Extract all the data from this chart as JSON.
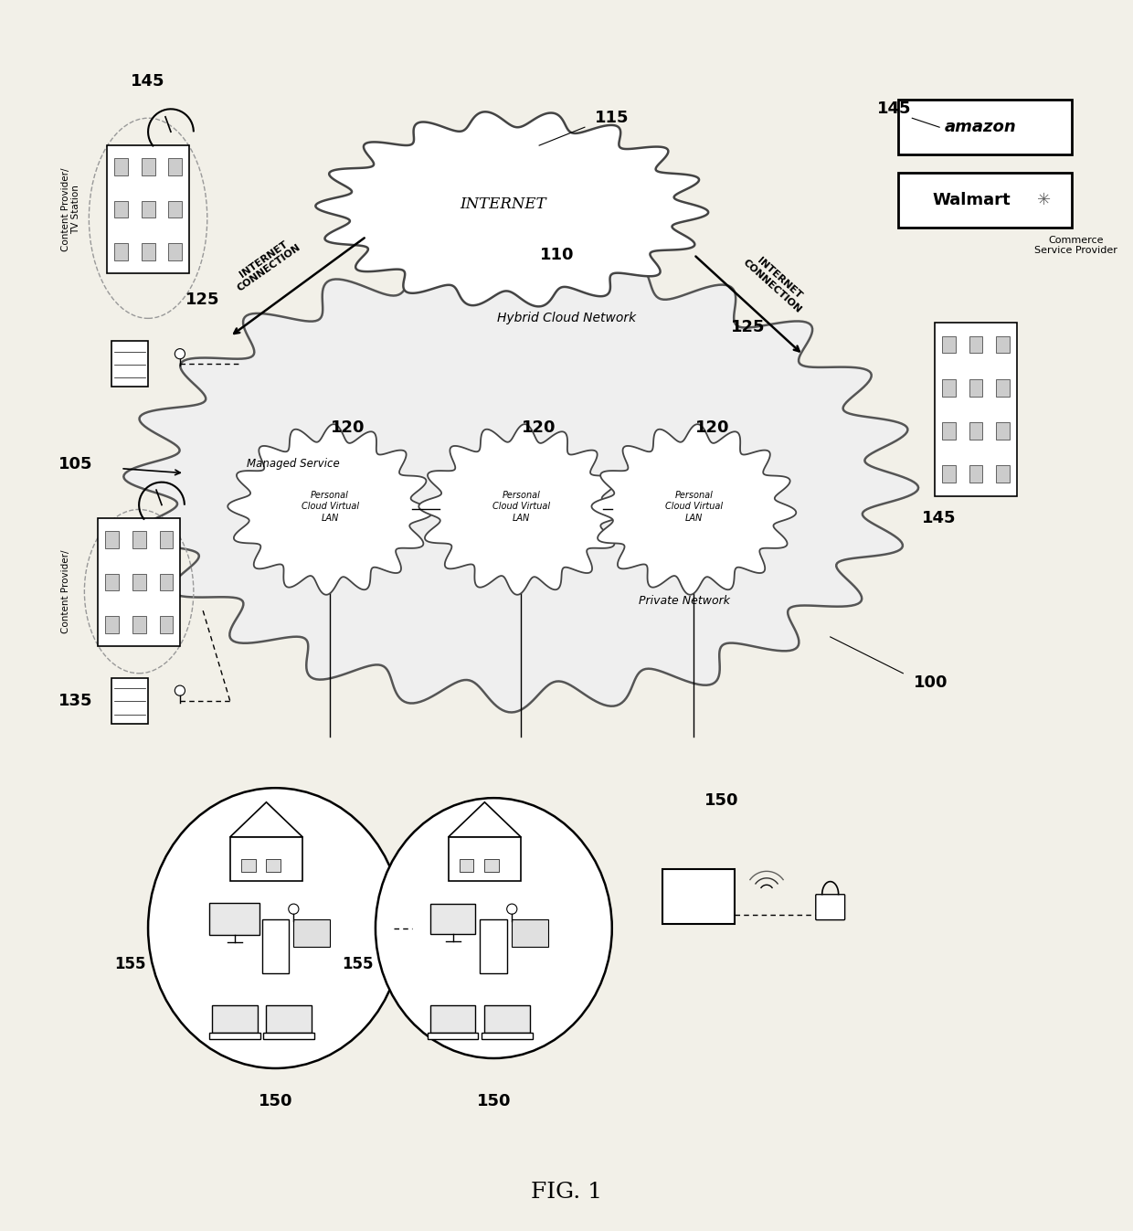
{
  "bg_color": "#f2f0e8",
  "fig_label": "FIG. 1",
  "labels": {
    "internet": "INTERNET",
    "n110": "110",
    "n115": "115",
    "hybrid_cloud": "Hybrid Cloud Network",
    "private_network": "Private Network",
    "managed_service": "Managed Service",
    "n105": "105",
    "n100": "100",
    "inet_conn": "INTERNET\nCONNECTION",
    "n125a": "125",
    "n125b": "125",
    "pclan": "Personal\nCloud Virtual\nLAN",
    "n120": "120",
    "content_tv": "Content Provider/\nTV Station",
    "content": "Content Provider/",
    "n145a": "145",
    "n145b": "145",
    "n145c": "145",
    "n135": "135",
    "commerce": "Commerce\nService Provider",
    "amazon": "amazon",
    "walmart": "Walmart",
    "n150a": "150",
    "n150b": "150",
    "n150c": "150",
    "n155a": "155",
    "n155b": "155"
  }
}
